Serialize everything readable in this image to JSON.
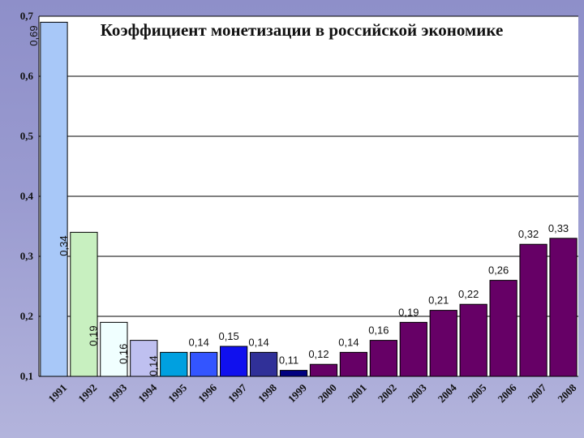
{
  "chart_data": {
    "type": "bar",
    "title": "Коэффициент монетизации  в российской экономике",
    "xlabel": "",
    "ylabel": "",
    "ylim": [
      0.1,
      0.7
    ],
    "ytick_labels": [
      "0,1",
      "0,2",
      "0,3",
      "0,4",
      "0,5",
      "0,6",
      "0,7"
    ],
    "yticks": [
      0.1,
      0.2,
      0.3,
      0.4,
      0.5,
      0.6,
      0.7
    ],
    "grid": true,
    "categories": [
      "1991",
      "1992",
      "1993",
      "1994",
      "1995",
      "1996",
      "1997",
      "1998",
      "1999",
      "2000",
      "2001",
      "2002",
      "2003",
      "2004",
      "2005",
      "2006",
      "2007",
      "2008"
    ],
    "values": [
      0.69,
      0.34,
      0.19,
      0.16,
      0.14,
      0.14,
      0.15,
      0.14,
      0.11,
      0.12,
      0.14,
      0.16,
      0.19,
      0.21,
      0.22,
      0.26,
      0.32,
      0.33
    ],
    "value_labels": [
      "0,69",
      "0,34",
      "0,19",
      "0,16",
      "0,14",
      "0,14",
      "0,15",
      "0,14",
      "0,11",
      "0,12",
      "0,14",
      "0,16",
      "0,19",
      "0,21",
      "0,22",
      "0,26",
      "0,32",
      "0,33"
    ],
    "bar_colors": [
      "#a8c8f8",
      "#c8f0c0",
      "#f0ffff",
      "#bfc0f0",
      "#00a0e0",
      "#3355ff",
      "#1010ee",
      "#303098",
      "#000080",
      "#660066",
      "#660066",
      "#660066",
      "#660066",
      "#660066",
      "#660066",
      "#660066",
      "#660066",
      "#660066"
    ],
    "plot_background": "#ffffff"
  }
}
